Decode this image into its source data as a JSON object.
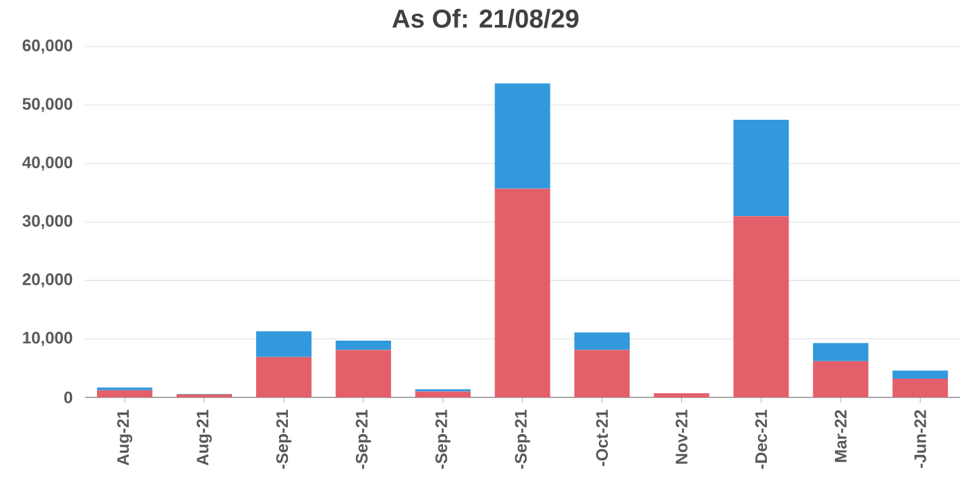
{
  "chart_data": {
    "type": "bar",
    "title": "As Of: 21/08/29",
    "stacked": true,
    "grid": "y",
    "categories": [
      "Aug-21",
      "Aug-21",
      "-Sep-21",
      "-Sep-21",
      "-Sep-21",
      "-Sep-21",
      "-Oct-21",
      "Nov-21",
      "-Dec-21",
      "Mar-22",
      "-Jun-22"
    ],
    "series": [
      {
        "color": "#e3606a",
        "values": [
          1200,
          500,
          6900,
          8100,
          1000,
          35700,
          8100,
          700,
          31000,
          6200,
          3200
        ]
      },
      {
        "color": "#3399dd",
        "values": [
          500,
          100,
          4400,
          1600,
          400,
          18000,
          3000,
          0,
          16500,
          3100,
          1400
        ]
      }
    ],
    "ylim": [
      0,
      60000
    ],
    "yticks": [
      {
        "value": 0,
        "label": "0"
      },
      {
        "value": 10000,
        "label": "10,000"
      },
      {
        "value": 20000,
        "label": "20,000"
      },
      {
        "value": 30000,
        "label": "30,000"
      },
      {
        "value": 40000,
        "label": "40,000"
      },
      {
        "value": 50000,
        "label": "50,000"
      },
      {
        "value": 60000,
        "label": "60,000"
      }
    ]
  }
}
